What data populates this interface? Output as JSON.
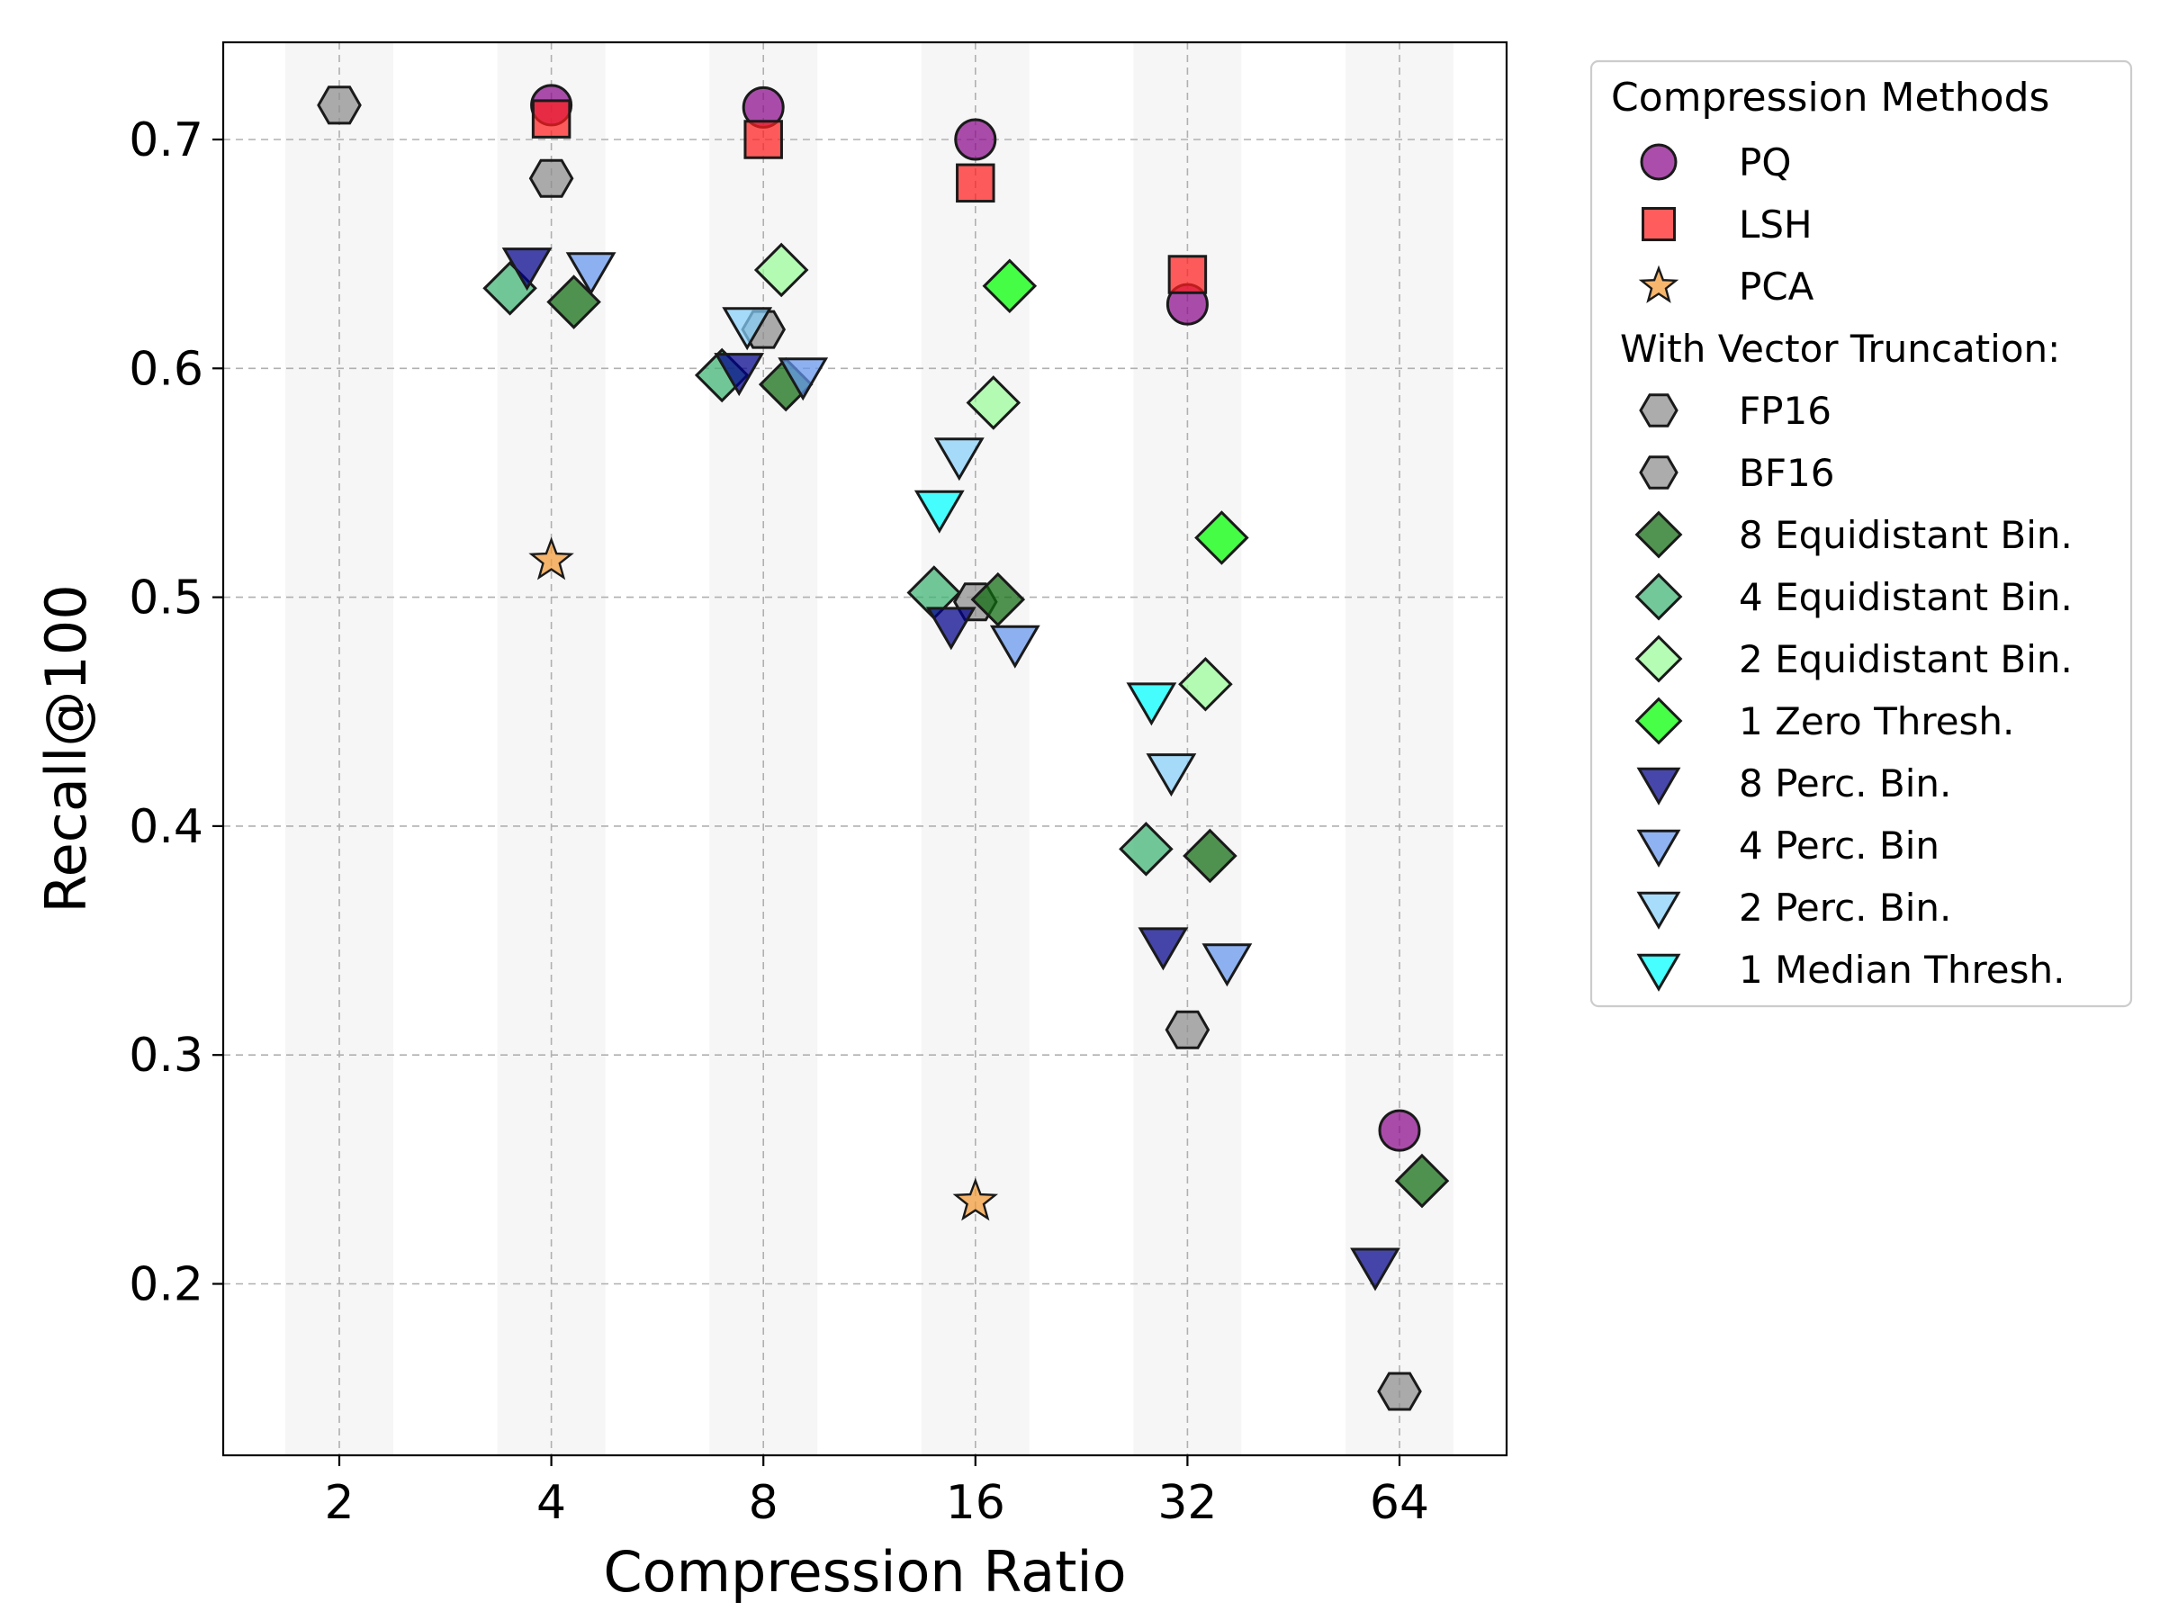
{
  "chart_data": {
    "type": "scatter",
    "title": "",
    "xlabel": "Compression Ratio",
    "ylabel": "Recall@100",
    "x_scale": "log2",
    "x_ticks": [
      "2",
      "4",
      "8",
      "16",
      "32",
      "64"
    ],
    "y_ticks": [
      "0.2",
      "0.3",
      "0.4",
      "0.5",
      "0.6",
      "0.7"
    ],
    "ylim": [
      0.125,
      0.743
    ],
    "grid": true,
    "legend_position": "outside-right",
    "legend_title": "Compression Methods",
    "legend_subtitle": "With Vector Truncation:",
    "series": [
      {
        "name": "PQ",
        "marker": "circle",
        "color": "#8b0a8b",
        "points": [
          [
            4,
            0.715
          ],
          [
            8,
            0.714
          ],
          [
            16,
            0.7
          ],
          [
            32,
            0.628
          ],
          [
            64,
            0.267
          ]
        ]
      },
      {
        "name": "LSH",
        "marker": "square",
        "color": "#ff1f1f",
        "points": [
          [
            4,
            0.709
          ],
          [
            8,
            0.7
          ],
          [
            16,
            0.681
          ],
          [
            32,
            0.641
          ]
        ]
      },
      {
        "name": "PCA",
        "marker": "star",
        "color": "#f49a34",
        "points": [
          [
            4,
            0.516
          ],
          [
            16,
            0.236
          ]
        ]
      },
      {
        "name": "FP16",
        "marker": "hexagon",
        "color": "#8c8c8c",
        "points": [
          [
            2,
            0.715
          ],
          [
            4,
            0.683
          ],
          [
            8,
            0.617
          ],
          [
            16,
            0.498
          ],
          [
            32,
            0.311
          ],
          [
            64,
            0.153
          ]
        ]
      },
      {
        "name": "BF16",
        "marker": "hexagon",
        "color": "#8c8c8c",
        "points": []
      },
      {
        "name": "8 Equidistant Bin.",
        "marker": "diamond",
        "color": "#0e6b0e",
        "points": [
          [
            4,
            0.629
          ],
          [
            8,
            0.593
          ],
          [
            16,
            0.499
          ],
          [
            32,
            0.387
          ],
          [
            64,
            0.245
          ]
        ]
      },
      {
        "name": "4 Equidistant Bin.",
        "marker": "diamond",
        "color": "#3cb371",
        "points": [
          [
            4,
            0.635
          ],
          [
            8,
            0.597
          ],
          [
            16,
            0.502
          ],
          [
            32,
            0.39
          ]
        ]
      },
      {
        "name": "2 Equidistant Bin.",
        "marker": "diamond",
        "color": "#98fb98",
        "points": [
          [
            8,
            0.643
          ],
          [
            16,
            0.585
          ],
          [
            32,
            0.462
          ]
        ]
      },
      {
        "name": "1 Zero Thresh.",
        "marker": "diamond",
        "color": "#00ff00",
        "points": [
          [
            16,
            0.636
          ],
          [
            32,
            0.526
          ]
        ]
      },
      {
        "name": "8 Perc. Bin.",
        "marker": "triangle-down",
        "color": "#00008b",
        "points": [
          [
            4,
            0.645
          ],
          [
            8,
            0.599
          ],
          [
            16,
            0.488
          ],
          [
            32,
            0.348
          ],
          [
            64,
            0.208
          ]
        ]
      },
      {
        "name": "4 Perc. Bin",
        "marker": "triangle-down",
        "color": "#6495ed",
        "points": [
          [
            4,
            0.643
          ],
          [
            8,
            0.597
          ],
          [
            16,
            0.48
          ],
          [
            32,
            0.341
          ]
        ]
      },
      {
        "name": "2 Perc. Bin.",
        "marker": "triangle-down",
        "color": "#87cefa",
        "points": [
          [
            8,
            0.619
          ],
          [
            16,
            0.562
          ],
          [
            32,
            0.424
          ]
        ]
      },
      {
        "name": "1 Median Thresh.",
        "marker": "triangle-down",
        "color": "#00ffff",
        "points": [
          [
            16,
            0.539
          ],
          [
            32,
            0.455
          ]
        ]
      }
    ]
  }
}
